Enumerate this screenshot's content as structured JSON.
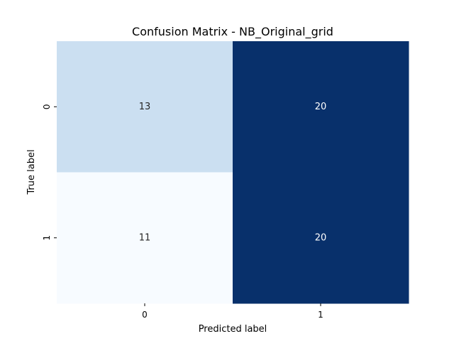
{
  "chart_data": {
    "type": "heatmap",
    "title": "Confusion Matrix - NB_Original_grid",
    "xlabel": "Predicted label",
    "ylabel": "True label",
    "x_categories": [
      "0",
      "1"
    ],
    "y_categories": [
      "0",
      "1"
    ],
    "values": [
      [
        13,
        20
      ],
      [
        11,
        20
      ]
    ],
    "colormap": "Blues",
    "colorbar": false,
    "annotated": true,
    "colors": {
      "low": "#f7fbff",
      "mid": "#cddff0",
      "high": "#08306b",
      "text_dark": "#262626",
      "text_light": "#ffffff"
    }
  }
}
